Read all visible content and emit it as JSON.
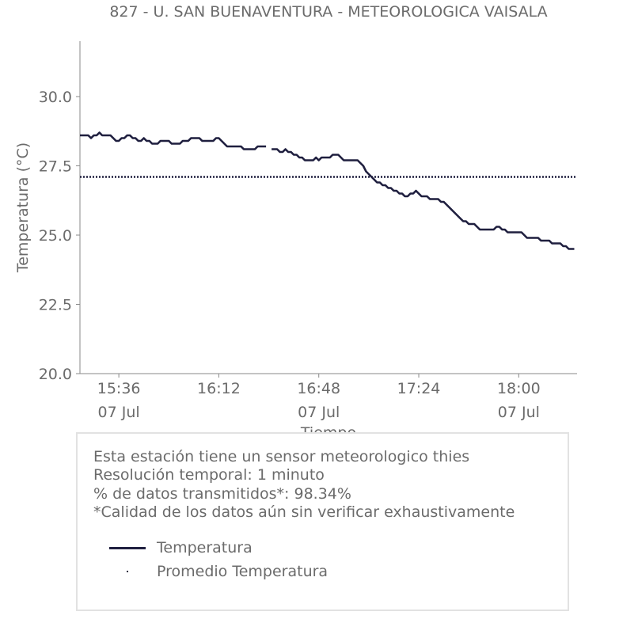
{
  "chart_data": {
    "type": "line",
    "title": "827 - U. SAN BUENAVENTURA - METEOROLOGICA VAISALA",
    "xlabel": "Tiempo",
    "ylabel": "Temperatura (°C)",
    "ylim": [
      20.0,
      32.0
    ],
    "yticks": [
      "20.0",
      "22.5",
      "25.0",
      "27.5",
      "30.0"
    ],
    "ytick_values": [
      20.0,
      22.5,
      25.0,
      27.5,
      30.0
    ],
    "xlim": [
      "15:22",
      "18:21"
    ],
    "xticks": [
      {
        "time": "15:36",
        "date": "07 Jul"
      },
      {
        "time": "16:12",
        "date": ""
      },
      {
        "time": "16:48",
        "date": "07 Jul"
      },
      {
        "time": "17:24",
        "date": ""
      },
      {
        "time": "18:00",
        "date": "07 Jul"
      }
    ],
    "grid": false,
    "series": [
      {
        "name": "Temperatura",
        "color": "#1f1f3f",
        "style": "solid",
        "points": [
          [
            "15:22",
            28.6
          ],
          [
            "15:25",
            28.6
          ],
          [
            "15:26",
            28.5
          ],
          [
            "15:27",
            28.6
          ],
          [
            "15:28",
            28.6
          ],
          [
            "15:29",
            28.7
          ],
          [
            "15:30",
            28.6
          ],
          [
            "15:33",
            28.6
          ],
          [
            "15:34",
            28.5
          ],
          [
            "15:35",
            28.4
          ],
          [
            "15:36",
            28.4
          ],
          [
            "15:37",
            28.5
          ],
          [
            "15:38",
            28.5
          ],
          [
            "15:39",
            28.6
          ],
          [
            "15:40",
            28.6
          ],
          [
            "15:41",
            28.5
          ],
          [
            "15:42",
            28.5
          ],
          [
            "15:43",
            28.4
          ],
          [
            "15:44",
            28.4
          ],
          [
            "15:45",
            28.5
          ],
          [
            "15:46",
            28.4
          ],
          [
            "15:47",
            28.4
          ],
          [
            "15:48",
            28.3
          ],
          [
            "15:50",
            28.3
          ],
          [
            "15:51",
            28.4
          ],
          [
            "15:54",
            28.4
          ],
          [
            "15:55",
            28.3
          ],
          [
            "15:58",
            28.3
          ],
          [
            "15:59",
            28.4
          ],
          [
            "16:01",
            28.4
          ],
          [
            "16:02",
            28.5
          ],
          [
            "16:05",
            28.5
          ],
          [
            "16:06",
            28.4
          ],
          [
            "16:10",
            28.4
          ],
          [
            "16:11",
            28.5
          ],
          [
            "16:12",
            28.5
          ],
          [
            "16:13",
            28.4
          ],
          [
            "16:14",
            28.3
          ],
          [
            "16:15",
            28.2
          ],
          [
            "16:20",
            28.2
          ],
          [
            "16:21",
            28.1
          ],
          [
            "16:25",
            28.1
          ],
          [
            "16:26",
            28.2
          ],
          [
            "16:29",
            28.2
          ],
          null,
          [
            "16:31",
            28.1
          ],
          [
            "16:33",
            28.1
          ],
          [
            "16:34",
            28.0
          ],
          [
            "16:35",
            28.0
          ],
          [
            "16:36",
            28.1
          ],
          [
            "16:37",
            28.0
          ],
          [
            "16:38",
            28.0
          ],
          [
            "16:39",
            27.9
          ],
          [
            "16:40",
            27.9
          ],
          [
            "16:41",
            27.8
          ],
          [
            "16:42",
            27.8
          ],
          [
            "16:43",
            27.7
          ],
          [
            "16:46",
            27.7
          ],
          [
            "16:47",
            27.8
          ],
          [
            "16:48",
            27.7
          ],
          [
            "16:49",
            27.8
          ],
          [
            "16:52",
            27.8
          ],
          [
            "16:53",
            27.9
          ],
          [
            "16:55",
            27.9
          ],
          [
            "16:56",
            27.8
          ],
          [
            "16:57",
            27.7
          ],
          [
            "17:02",
            27.7
          ],
          [
            "17:03",
            27.6
          ],
          [
            "17:04",
            27.5
          ],
          [
            "17:05",
            27.3
          ],
          [
            "17:06",
            27.2
          ],
          [
            "17:07",
            27.1
          ],
          [
            "17:08",
            27.0
          ],
          [
            "17:09",
            26.9
          ],
          [
            "17:10",
            26.9
          ],
          [
            "17:11",
            26.8
          ],
          [
            "17:12",
            26.8
          ],
          [
            "17:13",
            26.7
          ],
          [
            "17:14",
            26.7
          ],
          [
            "17:15",
            26.6
          ],
          [
            "17:16",
            26.6
          ],
          [
            "17:17",
            26.5
          ],
          [
            "17:18",
            26.5
          ],
          [
            "17:19",
            26.4
          ],
          [
            "17:20",
            26.4
          ],
          [
            "17:21",
            26.5
          ],
          [
            "17:22",
            26.5
          ],
          [
            "17:23",
            26.6
          ],
          [
            "17:24",
            26.5
          ],
          [
            "17:25",
            26.4
          ],
          [
            "17:27",
            26.4
          ],
          [
            "17:28",
            26.3
          ],
          [
            "17:31",
            26.3
          ],
          [
            "17:32",
            26.2
          ],
          [
            "17:33",
            26.2
          ],
          [
            "17:35",
            26.0
          ],
          [
            "17:37",
            25.8
          ],
          [
            "17:39",
            25.6
          ],
          [
            "17:40",
            25.5
          ],
          [
            "17:41",
            25.5
          ],
          [
            "17:42",
            25.4
          ],
          [
            "17:44",
            25.4
          ],
          [
            "17:45",
            25.3
          ],
          [
            "17:46",
            25.2
          ],
          [
            "17:51",
            25.2
          ],
          [
            "17:52",
            25.3
          ],
          [
            "17:53",
            25.3
          ],
          [
            "17:54",
            25.2
          ],
          [
            "17:55",
            25.2
          ],
          [
            "17:56",
            25.1
          ],
          [
            "18:01",
            25.1
          ],
          [
            "18:02",
            25.0
          ],
          [
            "18:03",
            24.9
          ],
          [
            "18:07",
            24.9
          ],
          [
            "18:08",
            24.8
          ],
          [
            "18:11",
            24.8
          ],
          [
            "18:12",
            24.7
          ],
          [
            "18:15",
            24.7
          ],
          [
            "18:16",
            24.6
          ],
          [
            "18:17",
            24.6
          ],
          [
            "18:18",
            24.5
          ],
          [
            "18:20",
            24.5
          ]
        ]
      },
      {
        "name": "Promedio Temperatura",
        "color": "#1f1f3f",
        "style": "dotted",
        "value": 27.1
      }
    ],
    "legend": [
      "Temperatura",
      "Promedio Temperatura"
    ],
    "legend_position": "bottom"
  },
  "info": {
    "line1": "Esta estación tiene un sensor meteorologico thies",
    "line2": "Resolución temporal: 1 minuto",
    "line3": "% de datos transmitidos*: 98.34%",
    "line4": "*Calidad de los datos aún sin verificar exhaustivamente"
  }
}
